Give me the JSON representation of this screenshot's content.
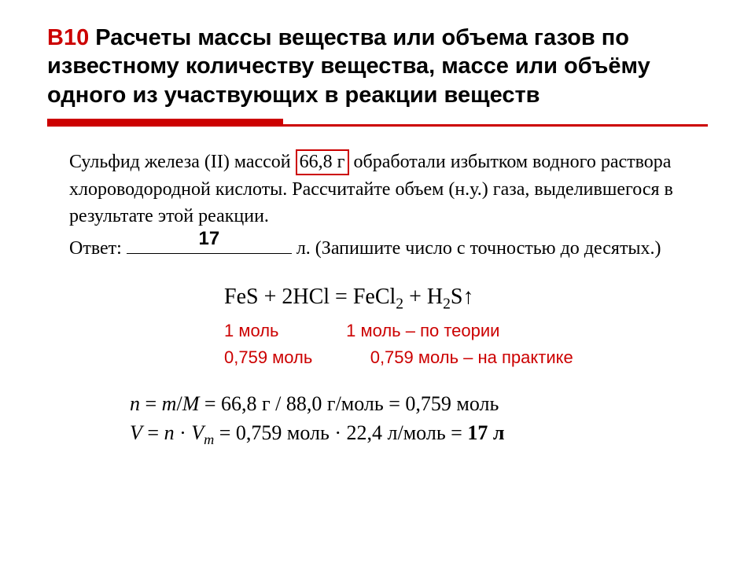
{
  "title": {
    "code": "В10",
    "rest": " Расчеты массы вещества или объема газов по известному количеству вещества, массе или объёму одного из участвующих в реакции веществ"
  },
  "problem": {
    "p1a": "Сульфид железа (II) массой ",
    "boxed_mass": "66,8 г",
    "p1b": " обработали избытком водного раствора хлороводородной кислоты. Рассчитайте объем (н.у.) газа, выделившегося в результате этой реакции.",
    "answer_label": "Ответ: ",
    "answer_value": "17",
    "answer_tail": " л. (Запишите число с точностью до десятых.)"
  },
  "equation": {
    "pre": "FeS + 2HCl = FeCl",
    "sub1": "2",
    "mid": " + H",
    "sub2": "2",
    "post": "S↑"
  },
  "theory": {
    "row1_left": "1 моль",
    "row1_right": "1 моль – по теории",
    "row2_left": "0,759 моль",
    "row2_right": "0,759 моль – на практике"
  },
  "calc": {
    "line1_a": "n",
    "line1_b": " = ",
    "line1_c": "m",
    "line1_d": "/",
    "line1_e": "M",
    "line1_f": " = 66,8 г / 88,0 г/моль = 0,759 моль",
    "line2_a": "V",
    "line2_b": " = ",
    "line2_c": "n",
    "line2_d": " · ",
    "line2_e": "V",
    "line2_sub": "m",
    "line2_f": " = 0,759 моль · 22,4 л/моль = ",
    "line2_result": "17 л"
  },
  "colors": {
    "accent": "#CC0000",
    "text": "#000000",
    "bg": "#ffffff"
  }
}
